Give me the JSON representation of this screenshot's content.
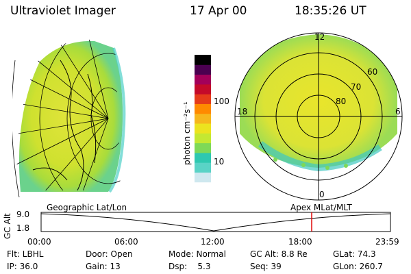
{
  "header": {
    "instrument": "Ultraviolet Imager",
    "date": "17 Apr 00",
    "time": "18:35:26 UT"
  },
  "colorbar": {
    "unit_label": "photon cm⁻²s⁻¹",
    "ticks": [
      "100",
      "10"
    ],
    "colors": [
      "#ffffff",
      "#cfe8ef",
      "#5ad3c6",
      "#2ec8b0",
      "#7ed957",
      "#c4e832",
      "#ece31f",
      "#f6b71d",
      "#ff8a00",
      "#e53b1a",
      "#c40a2a",
      "#a3005a",
      "#4b0050",
      "#000000"
    ]
  },
  "polar_plot": {
    "mlt_labels": {
      "top": "12",
      "left": "18",
      "right": "6",
      "bottom": "0"
    },
    "lat_labels": [
      "60",
      "70",
      "80"
    ]
  },
  "timeline": {
    "left_title": "Geographic Lat/Lon",
    "right_title": "Apex  MLat/MLT",
    "axis_label": "GC Alt",
    "y_ticks": [
      "9.0",
      "1.8"
    ],
    "x_ticks": [
      "00:00",
      "06:00",
      "12:00",
      "18:00",
      "23:59"
    ],
    "marker_hour": 18.59,
    "marker_color": "#e00000"
  },
  "status": {
    "row1": {
      "flt": "Flt: LBHL",
      "door": "Door: Open",
      "mode": "Mode: Normal",
      "gcalt": "GC Alt: 8.8 Re",
      "glat": "GLat:  74.3"
    },
    "row2": {
      "ip": "IP: 36.0",
      "gain": "Gain: 13",
      "dsp": "Dsp:    5.3",
      "seq": "Seq: 39",
      "glon": "GLon: 260.7"
    }
  }
}
